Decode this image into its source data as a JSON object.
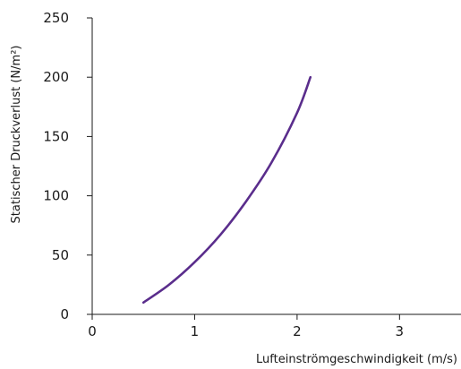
{
  "chart_data": {
    "type": "line",
    "xlabel": "Lufteinströmgeschwindigkeit (m/s)",
    "ylabel": "Statischer Druckverlust (N/m²)",
    "xlim": [
      0,
      3.6
    ],
    "ylim": [
      0,
      250
    ],
    "xticks": [
      0,
      1,
      2,
      3
    ],
    "yticks": [
      0,
      50,
      100,
      150,
      200,
      250
    ],
    "grid": false,
    "series": [
      {
        "color": "#5a2d8c",
        "x": [
          0.5,
          0.75,
          1.0,
          1.25,
          1.5,
          1.75,
          2.0,
          2.13
        ],
        "y": [
          10,
          25,
          44,
          67,
          95,
          128,
          170,
          200
        ]
      }
    ]
  }
}
